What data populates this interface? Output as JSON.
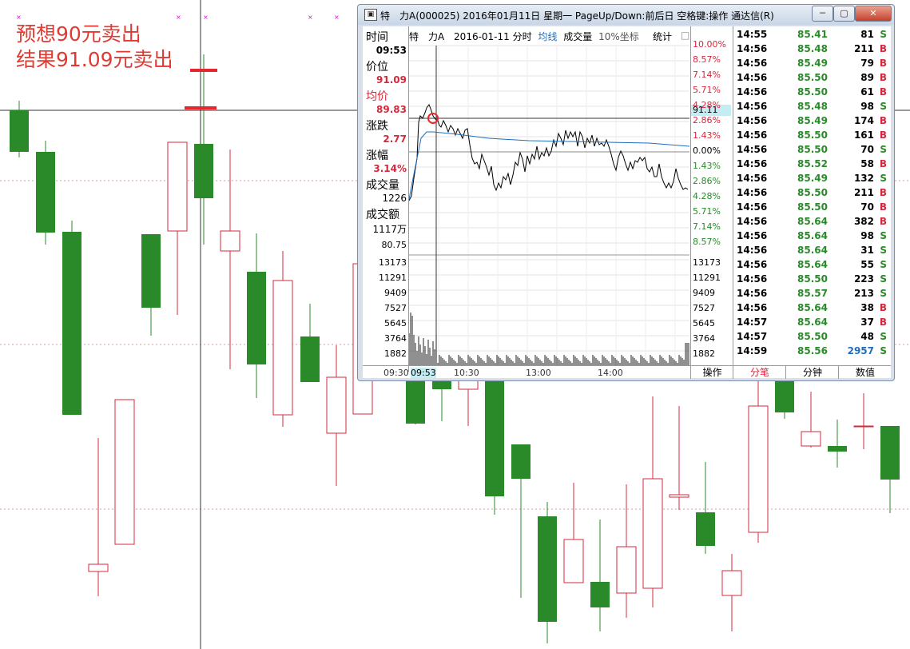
{
  "annotation": {
    "line1": "预想90元卖出",
    "line2": "结果91.09元卖出"
  },
  "window": {
    "title": "特　力A(000025) 2016年01月11日 星期一 PageUp/Down:前后日 空格键:操作 通达信(R)",
    "icon": "app-icon",
    "minimize": "─",
    "maximize": "▢",
    "close": "✕"
  },
  "info_panel": {
    "time_label": "时间",
    "time_value": "09:53",
    "price_label": "价位",
    "price_value": "91.09",
    "avg_label": "均价",
    "avg_value": "89.83",
    "change_label": "涨跌",
    "change_value": "2.77",
    "pct_label": "涨幅",
    "pct_value": "3.14%",
    "vol_label": "成交量",
    "vol_value": "1226",
    "amt_label": "成交额",
    "amt_value": "1117万",
    "vol_axis_top": "80.75",
    "vol_axis": [
      "13173",
      "11291",
      "9409",
      "7527",
      "5645",
      "3764",
      "1882"
    ]
  },
  "chart_header": {
    "stock": "特　力A",
    "date": "2016-01-11 分时",
    "avg_line": "均线",
    "volume": "成交量",
    "coord": "10%坐标",
    "stats": "统计",
    "checkbox": "□"
  },
  "right_axis": {
    "pct_top": [
      "10.00%",
      "8.57%",
      "7.14%",
      "5.71%",
      "4.28%",
      "2.86%",
      "1.43%",
      "0.00%",
      "1.43%",
      "2.86%",
      "4.28%",
      "5.71%",
      "7.14%",
      "8.57%"
    ],
    "current": "91.11",
    "vol": [
      "13173",
      "11291",
      "9409",
      "7527",
      "5645",
      "3764",
      "1882"
    ]
  },
  "time_axis": {
    "labels": [
      "09:30",
      "09:53",
      "10:30",
      "13:00",
      "14:00"
    ],
    "highlight": "09:53"
  },
  "ticks": [
    {
      "time": "14:55",
      "price": "85.41",
      "vol": "81",
      "side": "S"
    },
    {
      "time": "14:56",
      "price": "85.48",
      "vol": "211",
      "side": "B"
    },
    {
      "time": "14:56",
      "price": "85.49",
      "vol": "79",
      "side": "B"
    },
    {
      "time": "14:56",
      "price": "85.50",
      "vol": "89",
      "side": "B"
    },
    {
      "time": "14:56",
      "price": "85.50",
      "vol": "61",
      "side": "B"
    },
    {
      "time": "14:56",
      "price": "85.48",
      "vol": "98",
      "side": "S"
    },
    {
      "time": "14:56",
      "price": "85.49",
      "vol": "174",
      "side": "B"
    },
    {
      "time": "14:56",
      "price": "85.50",
      "vol": "161",
      "side": "B"
    },
    {
      "time": "14:56",
      "price": "85.50",
      "vol": "70",
      "side": "S"
    },
    {
      "time": "14:56",
      "price": "85.52",
      "vol": "58",
      "side": "B"
    },
    {
      "time": "14:56",
      "price": "85.49",
      "vol": "132",
      "side": "S"
    },
    {
      "time": "14:56",
      "price": "85.50",
      "vol": "211",
      "side": "B"
    },
    {
      "time": "14:56",
      "price": "85.50",
      "vol": "70",
      "side": "B"
    },
    {
      "time": "14:56",
      "price": "85.64",
      "vol": "382",
      "side": "B"
    },
    {
      "time": "14:56",
      "price": "85.64",
      "vol": "98",
      "side": "S"
    },
    {
      "time": "14:56",
      "price": "85.64",
      "vol": "31",
      "side": "S"
    },
    {
      "time": "14:56",
      "price": "85.64",
      "vol": "55",
      "side": "S"
    },
    {
      "time": "14:56",
      "price": "85.50",
      "vol": "223",
      "side": "S"
    },
    {
      "time": "14:56",
      "price": "85.57",
      "vol": "213",
      "side": "S"
    },
    {
      "time": "14:56",
      "price": "85.64",
      "vol": "38",
      "side": "B"
    },
    {
      "time": "14:57",
      "price": "85.64",
      "vol": "37",
      "side": "B"
    },
    {
      "time": "14:57",
      "price": "85.50",
      "vol": "48",
      "side": "S"
    },
    {
      "time": "14:59",
      "price": "85.56",
      "vol": "2957",
      "side": "S"
    }
  ],
  "bottom_tabs": [
    "操作",
    "分笔",
    "分钟",
    "数值"
  ],
  "colors": {
    "up": "#d6283c",
    "down": "#2a8a2a",
    "avg": "#1e6fbe",
    "accent": "#c5ecf3"
  }
}
